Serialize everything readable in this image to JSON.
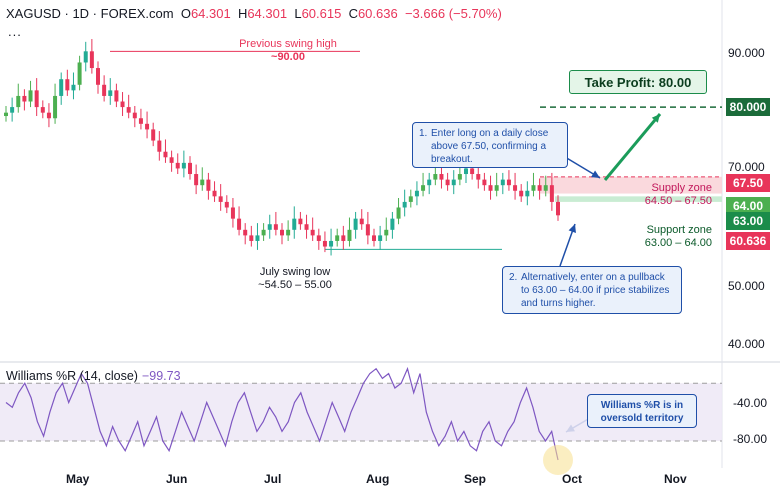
{
  "header": {
    "symbol": "XAGUSD · 1D · FOREX.com",
    "o_label": "O",
    "o_value": "64.301",
    "h_label": "H",
    "h_value": "64.301",
    "l_label": "L",
    "l_value": "60.615",
    "c_label": "C",
    "c_value": "60.636",
    "change": "−3.666 (−5.70%)",
    "more": "..."
  },
  "price_axis": {
    "ticks": [
      "90.000",
      "70.000",
      "50.000",
      "40.000"
    ],
    "visible_range": [
      34.3,
      99.2
    ]
  },
  "williams_axis": {
    "ticks": [
      "-40.00",
      "-80.00"
    ],
    "visible_range": [
      -108,
      2
    ]
  },
  "time_axis": {
    "ticks": [
      "May",
      "Jun",
      "Jul",
      "Aug",
      "Sep",
      "Oct",
      "Nov"
    ]
  },
  "price_badges": {
    "tp": "80.000",
    "supply": "67.50",
    "support_high": "64.00",
    "support_low": "63.00",
    "last": "60.636"
  },
  "annotations": {
    "swing_high": [
      "Previous swing high",
      "~90.00"
    ],
    "swing_low": [
      "July swing low",
      "~54.50 – 55.00"
    ],
    "take_profit": "Take Profit: 80.00",
    "supply_zone": [
      "Supply zone",
      "64.50 – 67.50"
    ],
    "support_zone": [
      "Support zone",
      "63.00 – 64.00"
    ],
    "callout1_num": "1.",
    "callout1_text": "Enter long on a daily close above 67.50, confirming a breakout.",
    "callout2_num": "2.",
    "callout2_text": "Alternatively, enter on a pullback to 63.00 – 64.00 if price stabilizes and turns higher.",
    "callout3": "Williams %R is in oversold territory"
  },
  "williams": {
    "label": "Williams %R (14, close)",
    "value": "−99.73"
  },
  "colors": {
    "up": "#22ab94",
    "up_alt": "#4caf50",
    "down": "#e8355a",
    "supply": "#f9d2d7",
    "support": "#c9ecd3",
    "tp": "#1b6b3a",
    "williams": "#7e57c2",
    "callout": "#1f4fa8"
  },
  "chart_data": [
    {
      "type": "candlestick",
      "title": "XAGUSD · 1D · FOREX.com",
      "x_ticks": [
        "May",
        "Jun",
        "Jul",
        "Aug",
        "Sep",
        "Oct",
        "Nov"
      ],
      "ylim": [
        34.3,
        99.2
      ],
      "y_ticks": [
        90,
        70,
        50,
        40
      ],
      "close_path_approx": [
        79,
        80,
        82,
        81,
        83,
        80,
        79,
        78,
        82,
        85,
        83,
        84,
        88,
        90,
        87,
        84,
        82,
        83,
        81,
        80,
        79,
        78,
        77,
        76,
        74,
        72,
        71,
        70,
        69,
        70,
        68,
        66,
        67,
        65,
        64,
        63,
        62,
        60,
        58,
        57,
        56,
        57,
        58,
        59,
        58,
        57,
        58,
        60,
        59,
        58,
        57,
        56,
        55,
        56,
        57,
        56,
        58,
        60,
        59,
        57,
        56,
        57,
        58,
        60,
        62,
        63,
        64,
        65,
        66,
        67,
        68,
        67,
        66,
        67,
        68,
        69,
        68,
        67,
        66,
        65,
        66,
        67,
        66,
        65,
        64,
        65,
        66,
        65,
        66,
        63,
        60.6
      ],
      "last_close": 60.636,
      "levels": {
        "take_profit": 80.0,
        "supply_zone": [
          64.5,
          67.5
        ],
        "support_zone": [
          63.0,
          64.0
        ],
        "swing_high": 90.0,
        "swing_low": [
          54.5,
          55.0
        ]
      }
    },
    {
      "type": "line",
      "title": "Williams %R (14, close)",
      "ylim": [
        -108,
        2
      ],
      "y_ticks": [
        -40,
        -80
      ],
      "bands": [
        -20,
        -80
      ],
      "values": [
        -40,
        -45,
        -30,
        -20,
        -35,
        -60,
        -75,
        -50,
        -30,
        -20,
        -40,
        -25,
        -10,
        -20,
        -45,
        -70,
        -85,
        -65,
        -80,
        -90,
        -75,
        -60,
        -85,
        -70,
        -55,
        -80,
        -90,
        -70,
        -50,
        -65,
        -80,
        -60,
        -40,
        -55,
        -70,
        -85,
        -60,
        -40,
        -30,
        -50,
        -70,
        -60,
        -45,
        -55,
        -70,
        -60,
        -40,
        -30,
        -50,
        -65,
        -80,
        -60,
        -40,
        -55,
        -70,
        -50,
        -35,
        -20,
        -10,
        -5,
        -15,
        -10,
        -25,
        -20,
        -5,
        -30,
        -10,
        -50,
        -70,
        -85,
        -75,
        -60,
        -80,
        -70,
        -85,
        -90,
        -70,
        -60,
        -80,
        -85,
        -70,
        -60,
        -40,
        -25,
        -45,
        -70,
        -80,
        -70,
        -99.73
      ],
      "last": -99.73
    }
  ]
}
